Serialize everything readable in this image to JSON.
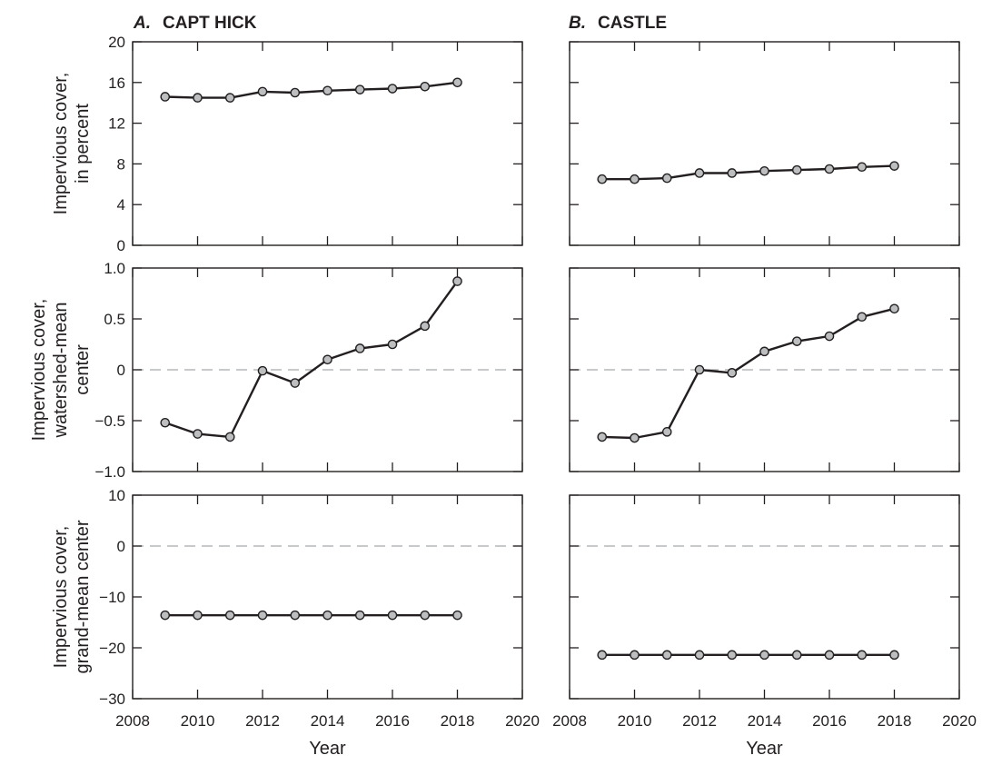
{
  "panels": [
    {
      "letter": "A.",
      "name": "CAPT HICK"
    },
    {
      "letter": "B.",
      "name": "CASTLE"
    }
  ],
  "x_axis": {
    "label": "Year",
    "ticks": [
      "2008",
      "2010",
      "2012",
      "2014",
      "2016",
      "2018",
      "2020"
    ],
    "range": [
      2008,
      2020
    ]
  },
  "rows": [
    {
      "ylabel_lines": [
        "Impervious cover,",
        "in percent"
      ],
      "ticks": [
        "0",
        "4",
        "8",
        "12",
        "16",
        "20"
      ],
      "tick_values": [
        0,
        4,
        8,
        12,
        16,
        20
      ],
      "ylim": [
        0,
        20
      ],
      "zero_line": false
    },
    {
      "ylabel_lines": [
        "Impervious cover,",
        "watershed-mean",
        "center"
      ],
      "ticks": [
        "−1.0",
        "−0.5",
        "0",
        "0.5",
        "1.0"
      ],
      "tick_values": [
        -1,
        -0.5,
        0,
        0.5,
        1
      ],
      "ylim": [
        -1,
        1
      ],
      "zero_line": true
    },
    {
      "ylabel_lines": [
        "Impervious cover,",
        "grand-mean center"
      ],
      "ticks": [
        "−30",
        "−20",
        "−10",
        "0",
        "10"
      ],
      "tick_values": [
        -30,
        -20,
        -10,
        0,
        10
      ],
      "ylim": [
        -30,
        10
      ],
      "zero_line": true
    }
  ],
  "chart_data": [
    {
      "type": "line",
      "panel": "A. CAPT HICK",
      "ylabel": "Impervious cover, in percent",
      "x": [
        2009,
        2010,
        2011,
        2012,
        2013,
        2014,
        2015,
        2016,
        2017,
        2018
      ],
      "y": [
        14.6,
        14.5,
        14.5,
        15.1,
        15.0,
        15.2,
        15.3,
        15.4,
        15.6,
        16.0
      ],
      "xlim": [
        2008,
        2020
      ],
      "ylim": [
        0,
        20
      ]
    },
    {
      "type": "line",
      "panel": "B. CASTLE",
      "ylabel": "Impervious cover, in percent",
      "x": [
        2009,
        2010,
        2011,
        2012,
        2013,
        2014,
        2015,
        2016,
        2017,
        2018
      ],
      "y": [
        6.5,
        6.5,
        6.6,
        7.1,
        7.1,
        7.3,
        7.4,
        7.5,
        7.7,
        7.8
      ],
      "xlim": [
        2008,
        2020
      ],
      "ylim": [
        0,
        20
      ]
    },
    {
      "type": "line",
      "panel": "A. CAPT HICK",
      "ylabel": "Impervious cover, watershed-mean center",
      "x": [
        2009,
        2010,
        2011,
        2012,
        2013,
        2014,
        2015,
        2016,
        2017,
        2018
      ],
      "y": [
        -0.52,
        -0.63,
        -0.66,
        -0.01,
        -0.13,
        0.1,
        0.21,
        0.25,
        0.43,
        0.87
      ],
      "xlim": [
        2008,
        2020
      ],
      "ylim": [
        -1,
        1
      ]
    },
    {
      "type": "line",
      "panel": "B. CASTLE",
      "ylabel": "Impervious cover, watershed-mean center",
      "x": [
        2009,
        2010,
        2011,
        2012,
        2013,
        2014,
        2015,
        2016,
        2017,
        2018
      ],
      "y": [
        -0.66,
        -0.67,
        -0.61,
        0.0,
        -0.03,
        0.18,
        0.28,
        0.33,
        0.52,
        0.6
      ],
      "xlim": [
        2008,
        2020
      ],
      "ylim": [
        -1,
        1
      ]
    },
    {
      "type": "line",
      "panel": "A. CAPT HICK",
      "ylabel": "Impervious cover, grand-mean center",
      "x": [
        2009,
        2010,
        2011,
        2012,
        2013,
        2014,
        2015,
        2016,
        2017,
        2018
      ],
      "y": [
        -13.6,
        -13.6,
        -13.6,
        -13.6,
        -13.6,
        -13.6,
        -13.6,
        -13.6,
        -13.6,
        -13.6
      ],
      "xlim": [
        2008,
        2020
      ],
      "ylim": [
        -30,
        10
      ]
    },
    {
      "type": "line",
      "panel": "B. CASTLE",
      "ylabel": "Impervious cover, grand-mean center",
      "x": [
        2009,
        2010,
        2011,
        2012,
        2013,
        2014,
        2015,
        2016,
        2017,
        2018
      ],
      "y": [
        -21.4,
        -21.4,
        -21.4,
        -21.4,
        -21.4,
        -21.4,
        -21.4,
        -21.4,
        -21.4,
        -21.4
      ],
      "xlim": [
        2008,
        2020
      ],
      "ylim": [
        -30,
        10
      ]
    }
  ],
  "colors": {
    "line": "#231f20",
    "marker_fill": "#bcbec0",
    "zero_line": "#a7a9ac",
    "axis": "#231f20"
  }
}
